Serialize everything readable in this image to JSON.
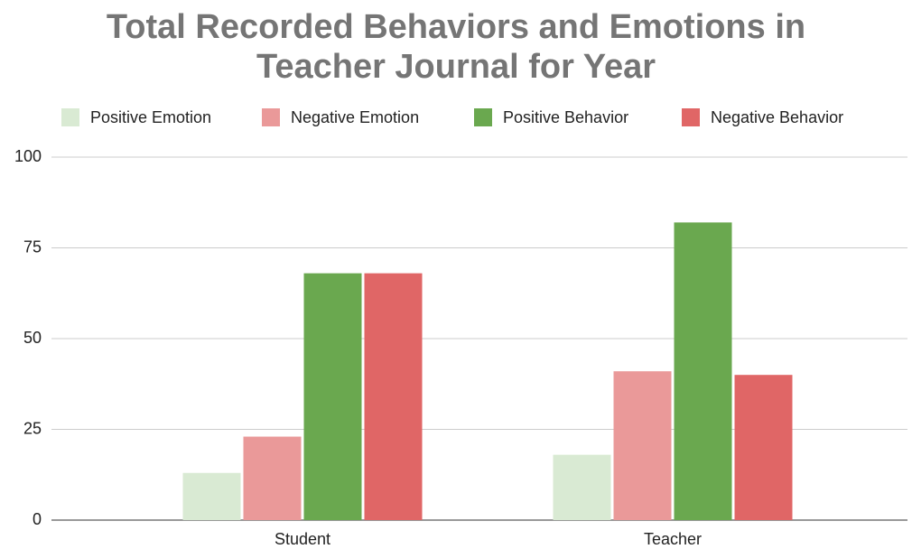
{
  "chart_data": {
    "type": "bar",
    "title": "Total Recorded Behaviors and Emotions in Teacher Journal for Year",
    "categories": [
      "Student",
      "Teacher"
    ],
    "series": [
      {
        "name": "Positive Emotion",
        "color": "#d9ead3",
        "values": [
          13,
          18
        ]
      },
      {
        "name": "Negative Emotion",
        "color": "#ea9999",
        "values": [
          23,
          41
        ]
      },
      {
        "name": "Positive Behavior",
        "color": "#6aa84f",
        "values": [
          68,
          82
        ]
      },
      {
        "name": "Negative Behavior",
        "color": "#e06666",
        "values": [
          68,
          40
        ]
      }
    ],
    "ylim": [
      0,
      100
    ],
    "yticks": [
      0,
      25,
      50,
      75,
      100
    ],
    "grid": true,
    "legend": "top"
  }
}
